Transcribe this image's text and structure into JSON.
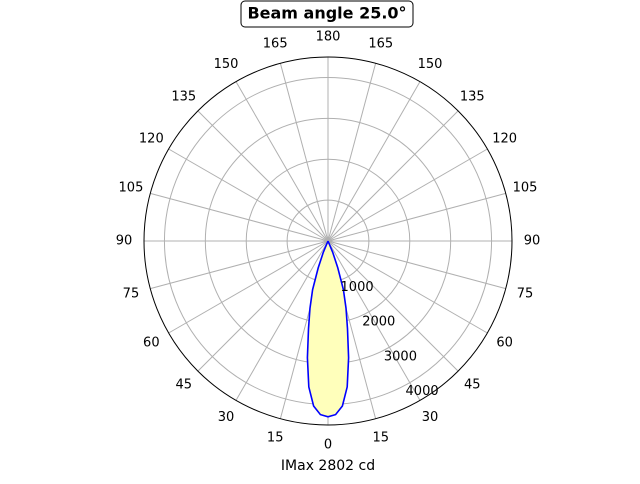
{
  "chart_data": {
    "type": "polar",
    "title": "Beam angle 25.0°",
    "xlabel": "IMax 2802 cd",
    "theta": [
      -25,
      -22.5,
      -20,
      -17.5,
      -15,
      -12.5,
      -10,
      -7.5,
      -5,
      -2.5,
      0,
      2.5,
      5,
      7.5,
      10,
      12.5,
      15,
      17.5,
      20,
      22.5,
      25
    ],
    "series": [
      {
        "color": "#0000ff",
        "fill": "#ffffbb",
        "values": [
          0,
          300,
          700,
          1250,
          1700,
          2200,
          2900,
          3600,
          4050,
          4250,
          4300,
          4250,
          4050,
          3600,
          2900,
          2200,
          1700,
          1250,
          700,
          300,
          0
        ]
      }
    ],
    "rlim": [
      0,
      4500
    ],
    "rticks": [
      1000,
      2000,
      3000,
      4000
    ],
    "thetaticks": [
      0,
      15,
      30,
      45,
      60,
      75,
      90,
      105,
      120,
      135,
      150,
      165,
      180,
      {
        "value": -15,
        "label": "15"
      },
      {
        "value": -30,
        "label": "30"
      },
      {
        "value": -45,
        "label": "45"
      },
      {
        "value": -60,
        "label": "60"
      },
      {
        "value": -75,
        "label": "75"
      },
      {
        "value": -90,
        "label": "90"
      },
      {
        "value": -105,
        "label": "105"
      },
      {
        "value": -120,
        "label": "120"
      },
      {
        "value": -135,
        "label": "135"
      },
      {
        "value": -150,
        "label": "150"
      },
      {
        "value": -165,
        "label": "165"
      }
    ],
    "grid": true
  }
}
